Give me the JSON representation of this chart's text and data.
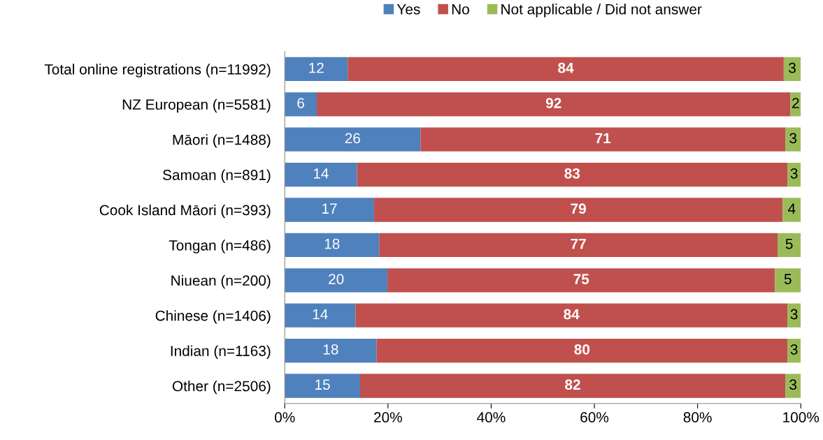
{
  "chart_data": {
    "type": "bar",
    "orientation": "horizontal",
    "stacked": true,
    "categories": [
      "Total online registrations (n=11992)",
      "NZ European (n=5581)",
      "Māori (n=1488)",
      "Samoan (n=891)",
      "Cook Island Māori (n=393)",
      "Tongan (n=486)",
      "Niuean (n=200)",
      "Chinese (n=1406)",
      "Indian (n=1163)",
      "Other (n=2506)"
    ],
    "series": [
      {
        "name": "Yes",
        "color": "#4f81bd",
        "values": [
          12.2,
          6.2,
          26.3,
          14.0,
          17.3,
          18.3,
          19.9,
          13.7,
          17.8,
          14.6
        ],
        "value_labels": [
          "12",
          "6",
          "26",
          "14",
          "17",
          "18",
          "20",
          "14",
          "18",
          "15"
        ]
      },
      {
        "name": "No",
        "color": "#c0504d",
        "values": [
          84.5,
          91.8,
          70.7,
          83.4,
          79.2,
          77.2,
          75.1,
          83.7,
          79.6,
          82.4
        ],
        "value_labels": [
          "84",
          "92",
          "71",
          "83",
          "79",
          "77",
          "75",
          "84",
          "80",
          "82"
        ]
      },
      {
        "name": "Not applicable / Did not answer",
        "color": "#9bbb59",
        "values": [
          3.3,
          2.0,
          3.0,
          2.6,
          3.5,
          4.5,
          5.0,
          2.6,
          2.6,
          3.0
        ],
        "value_labels": [
          "3",
          "2",
          "3",
          "3",
          "4",
          "5",
          "5",
          "3",
          "3",
          "3"
        ]
      }
    ],
    "xlim": [
      0,
      100
    ],
    "xticks": [
      {
        "value": 0,
        "label": "0%"
      },
      {
        "value": 20,
        "label": "20%"
      },
      {
        "value": 40,
        "label": "40%"
      },
      {
        "value": 60,
        "label": "60%"
      },
      {
        "value": 80,
        "label": "80%"
      },
      {
        "value": 100,
        "label": "100%"
      }
    ],
    "grid": false,
    "legend": "top"
  }
}
